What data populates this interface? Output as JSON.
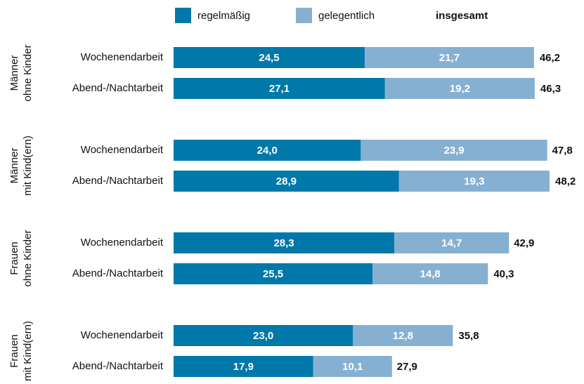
{
  "chart_data": {
    "type": "stacked-barh",
    "categories": [
      "Wochenendarbeit",
      "Abend-/Nachtarbeit",
      "Wochenendarbeit",
      "Abend-/Nachtarbeit",
      "Wochenendarbeit",
      "Abend-/Nachtarbeit",
      "Wochenendarbeit",
      "Abend-/Nachtarbeit"
    ],
    "groups": [
      {
        "label": [
          "Männer",
          "ohne Kinder"
        ]
      },
      {
        "label": [
          "Männer",
          "mit Kind(ern)"
        ]
      },
      {
        "label": [
          "Frauen",
          "ohne Kinder"
        ]
      },
      {
        "label": [
          "Frauen",
          "mit Kind(ern)"
        ]
      }
    ],
    "series": [
      {
        "name": "regelmäßig",
        "color": "#0078a9",
        "values": [
          24.5,
          27.1,
          24.0,
          28.9,
          28.3,
          25.5,
          23.0,
          17.9
        ],
        "value_labels": [
          "24,5",
          "27,1",
          "24,0",
          "28,9",
          "28,3",
          "25,5",
          "23,0",
          "17,9"
        ]
      },
      {
        "name": "gelegentlich",
        "color": "#86b0d2",
        "values": [
          21.7,
          19.2,
          23.9,
          19.3,
          14.7,
          14.8,
          12.8,
          10.1
        ],
        "value_labels": [
          "21,7",
          "19,2",
          "23,9",
          "19,3",
          "14,7",
          "14,8",
          "12,8",
          "10,1"
        ]
      }
    ],
    "totals": {
      "name": "insgesamt",
      "values": [
        46.2,
        46.3,
        47.8,
        48.2,
        42.9,
        40.3,
        35.8,
        27.9
      ],
      "value_labels": [
        "46,2",
        "46,3",
        "47,8",
        "48,2",
        "42,9",
        "40,3",
        "35,8",
        "27,9"
      ]
    }
  }
}
